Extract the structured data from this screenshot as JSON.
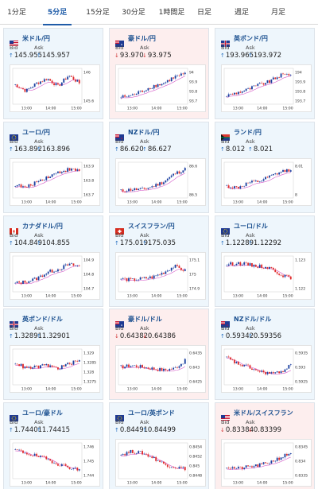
{
  "tabs": [
    {
      "label": "1分足",
      "active": false
    },
    {
      "label": "5分足",
      "active": true
    },
    {
      "label": "15分足",
      "active": false
    },
    {
      "label": "30分足",
      "active": false
    },
    {
      "label": "1時間足",
      "active": false
    },
    {
      "label": "日足",
      "active": false
    },
    {
      "label": "週足",
      "active": false
    },
    {
      "label": "月足",
      "active": false
    }
  ],
  "labels": {
    "bid": "Bid",
    "ask": "Ask"
  },
  "colors": {
    "up_candle": "#1a3fa0",
    "down_candle": "#e02d2d",
    "ma_line": "#d65bc8",
    "title": "#1a4f8f",
    "up_arrow": "#2a73c2",
    "down_arrow": "#d23a3a"
  },
  "pairs": [
    {
      "name": "米ドル/円",
      "flag": "us-flag",
      "direction": "up",
      "bid": "145.955",
      "ask": "145.957",
      "y_ticks": [
        "146",
        "145.6"
      ],
      "x_ticks": [
        "13:00",
        "14:00",
        "15:00"
      ],
      "trend": [
        0.55,
        0.35,
        0.6,
        0.75,
        0.5,
        0.85,
        0.6
      ]
    },
    {
      "name": "豪ドル/円",
      "flag": "au-flag",
      "direction": "down",
      "bid": "93.970",
      "ask": "93.975",
      "y_ticks": [
        "94",
        "93.9",
        "93.8",
        "93.7"
      ],
      "x_ticks": [
        "13:00",
        "14:00",
        "15:00"
      ],
      "trend": [
        0.15,
        0.2,
        0.35,
        0.5,
        0.6,
        0.8,
        0.9
      ]
    },
    {
      "name": "英ポンド/円",
      "flag": "gb-flag",
      "direction": "up",
      "bid": "193.965",
      "ask": "193.972",
      "y_ticks": [
        "194",
        "193.9",
        "193.8",
        "193.7"
      ],
      "x_ticks": [
        "13:00",
        "14:00",
        "15:00"
      ],
      "trend": [
        0.2,
        0.3,
        0.4,
        0.55,
        0.65,
        0.85,
        0.9
      ]
    },
    {
      "name": "ユーロ/円",
      "flag": "eu-flag",
      "direction": "up",
      "bid": "163.892",
      "ask": "163.896",
      "y_ticks": [
        "163.9",
        "163.8",
        "163.7"
      ],
      "x_ticks": [
        "13:00",
        "14:00",
        "15:00"
      ],
      "trend": [
        0.35,
        0.25,
        0.45,
        0.6,
        0.75,
        0.85,
        0.8
      ]
    },
    {
      "name": "NZドル/円",
      "flag": "nz-flag",
      "direction": "up",
      "bid": "86.620",
      "ask": "86.627",
      "y_ticks": [
        "86.6",
        "86.5"
      ],
      "x_ticks": [
        "13:00",
        "14:00",
        "15:00"
      ],
      "trend": [
        0.15,
        0.2,
        0.2,
        0.3,
        0.45,
        0.7,
        0.85
      ]
    },
    {
      "name": "ランド/円",
      "flag": "za-flag",
      "direction": "up",
      "bid": "8.012",
      "ask": "8.021",
      "y_ticks": [
        "8.01",
        "8"
      ],
      "x_ticks": [
        "13:00",
        "14:00",
        "15:00"
      ],
      "trend": [
        0.3,
        0.25,
        0.4,
        0.45,
        0.6,
        0.75,
        0.85
      ]
    },
    {
      "name": "カナダドル/円",
      "flag": "ca-flag",
      "direction": "up",
      "bid": "104.849",
      "ask": "104.855",
      "y_ticks": [
        "104.9",
        "104.8",
        "104.7"
      ],
      "x_ticks": [
        "13:00",
        "14:00",
        "15:00"
      ],
      "trend": [
        0.2,
        0.25,
        0.35,
        0.55,
        0.65,
        0.8,
        0.75
      ]
    },
    {
      "name": "スイスフラン/円",
      "flag": "ch-flag",
      "direction": "up",
      "bid": "175.019",
      "ask": "175.035",
      "y_ticks": [
        "175.1",
        "175",
        "174.9"
      ],
      "x_ticks": [
        "13:00",
        "14:00",
        "15:00"
      ],
      "trend": [
        0.35,
        0.3,
        0.35,
        0.4,
        0.55,
        0.75,
        0.6
      ]
    },
    {
      "name": "ユーロ/ドル",
      "flag": "eu-flag",
      "direction": "up",
      "bid": "1.12289",
      "ask": "1.12292",
      "y_ticks": [
        "1.123",
        "1.122"
      ],
      "x_ticks": [
        "13:00",
        "14:00",
        "15:00"
      ],
      "trend": [
        0.8,
        0.85,
        0.8,
        0.75,
        0.7,
        0.5,
        0.35
      ]
    },
    {
      "name": "英ポンド/ドル",
      "flag": "gb-flag",
      "direction": "up",
      "bid": "1.32891",
      "ask": "1.32901",
      "y_ticks": [
        "1.329",
        "1.3285",
        "1.328",
        "1.3275"
      ],
      "x_ticks": [
        "13:00",
        "14:00",
        "15:00"
      ],
      "trend": [
        0.65,
        0.45,
        0.5,
        0.55,
        0.45,
        0.6,
        0.7
      ]
    },
    {
      "name": "豪ドル/ドル",
      "flag": "au-flag",
      "direction": "down",
      "bid": "0.64382",
      "ask": "0.64386",
      "y_ticks": [
        "0.6435",
        "0.643",
        "0.6425"
      ],
      "x_ticks": [
        "13:00",
        "14:00",
        "15:00"
      ],
      "trend": [
        0.5,
        0.55,
        0.5,
        0.45,
        0.4,
        0.45,
        0.7
      ]
    },
    {
      "name": "NZドル/ドル",
      "flag": "nz-flag",
      "direction": "up",
      "bid": "0.59342",
      "ask": "0.59356",
      "y_ticks": [
        "0.5935",
        "0.593",
        "0.5925"
      ],
      "x_ticks": [
        "13:00",
        "14:00",
        "15:00"
      ],
      "trend": [
        0.8,
        0.6,
        0.5,
        0.35,
        0.3,
        0.3,
        0.6
      ]
    },
    {
      "name": "ユーロ/豪ドル",
      "flag": "eu-flag",
      "direction": "up",
      "bid": "1.74401",
      "ask": "1.74415",
      "y_ticks": [
        "1.746",
        "1.745",
        "1.744"
      ],
      "x_ticks": [
        "13:00",
        "14:00",
        "15:00"
      ],
      "trend": [
        0.85,
        0.75,
        0.65,
        0.55,
        0.4,
        0.3,
        0.2
      ]
    },
    {
      "name": "ユーロ/英ポンド",
      "flag": "eu-flag",
      "direction": "up",
      "bid": "0.84491",
      "ask": "0.84499",
      "y_ticks": [
        "0.8454",
        "0.8452",
        "0.845",
        "0.8448"
      ],
      "x_ticks": [
        "13:00",
        "14:00",
        "15:00"
      ],
      "trend": [
        0.7,
        0.8,
        0.75,
        0.6,
        0.4,
        0.3,
        0.25
      ]
    },
    {
      "name": "米ドル/スイスフラン",
      "flag": "us-flag",
      "direction": "down",
      "bid": "0.83384",
      "ask": "0.83399",
      "y_ticks": [
        "0.8345",
        "0.834",
        "0.8335"
      ],
      "x_ticks": [
        "13:00",
        "14:00",
        "15:00"
      ],
      "trend": [
        0.3,
        0.25,
        0.3,
        0.35,
        0.45,
        0.6,
        0.75
      ]
    }
  ]
}
